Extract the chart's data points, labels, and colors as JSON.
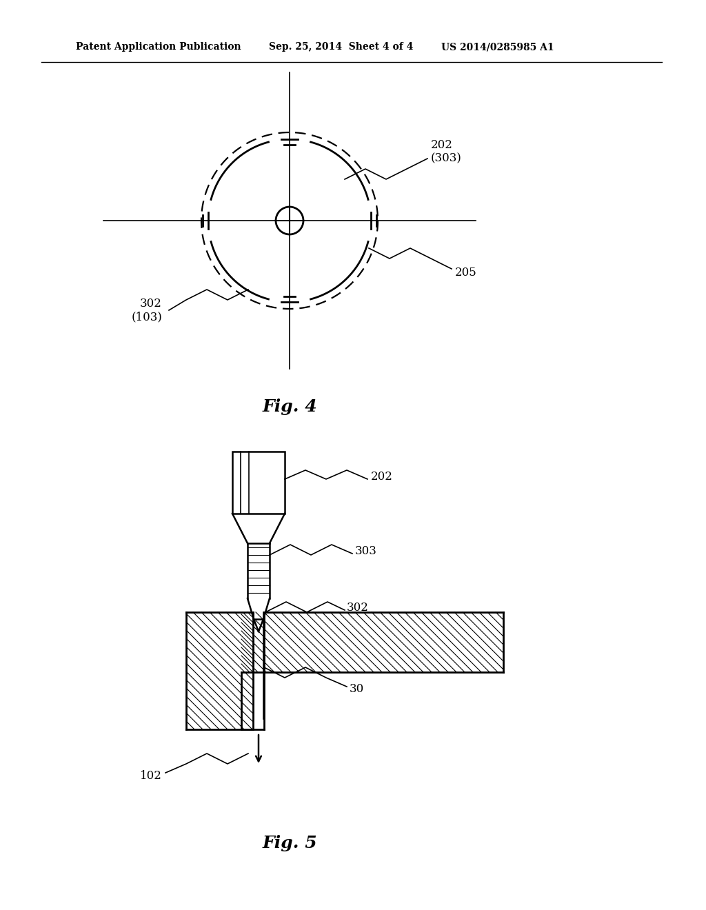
{
  "bg_color": "#ffffff",
  "header_text1": "Patent Application Publication",
  "header_text2": "Sep. 25, 2014  Sheet 4 of 4",
  "header_text3": "US 2014/0285985 A1",
  "fig4_label": "Fig. 4",
  "fig5_label": "Fig. 5",
  "label_202_303": "202\n(303)",
  "label_205": "205",
  "label_302_103": "302\n(103)",
  "label_202": "202",
  "label_303": "303",
  "label_302": "302",
  "label_30": "30",
  "label_102": "102"
}
